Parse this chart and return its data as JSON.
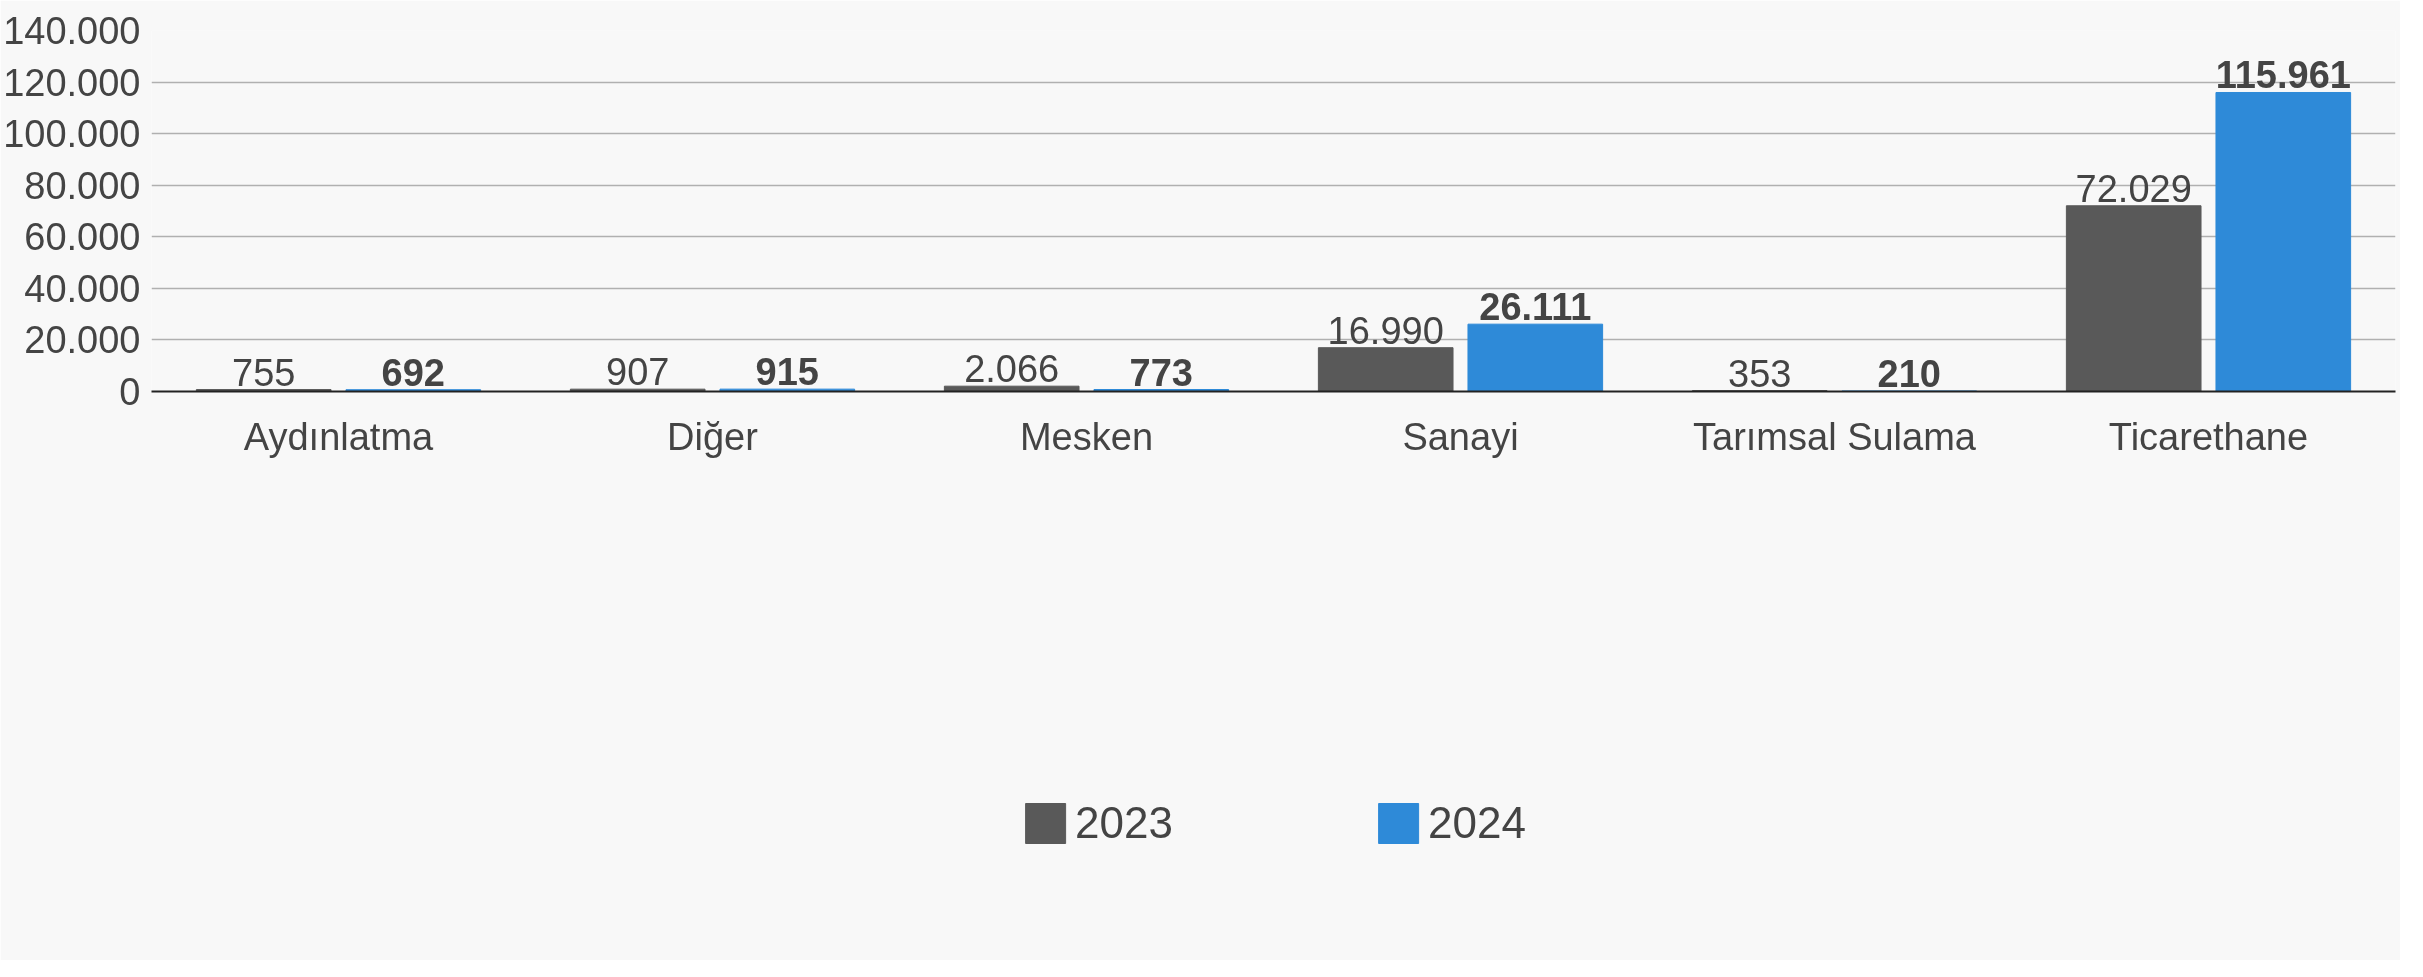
{
  "chart_data": {
    "type": "bar",
    "categories": [
      "Aydınlatma",
      "Diğer",
      "Mesken",
      "Sanayi",
      "Tarımsal Sulama",
      "Ticarethane"
    ],
    "series": [
      {
        "name": "2023",
        "color": "#595959",
        "values": [
          755,
          907,
          2066,
          16990,
          353,
          72029
        ],
        "value_labels": [
          "755",
          "907",
          "2.066",
          "16.990",
          "353",
          "72.029"
        ]
      },
      {
        "name": "2024",
        "color": "#2e8ad8",
        "values": [
          692,
          915,
          773,
          26111,
          210,
          115961
        ],
        "value_labels": [
          "692",
          "915",
          "773",
          "26.111",
          "210",
          "115.961"
        ]
      }
    ],
    "ylim": [
      0,
      140000
    ],
    "yticks": [
      {
        "value": 0,
        "label": "0"
      },
      {
        "value": 20000,
        "label": "20.000"
      },
      {
        "value": 40000,
        "label": "40.000"
      },
      {
        "value": 60000,
        "label": "60.000"
      },
      {
        "value": 80000,
        "label": "80.000"
      },
      {
        "value": 100000,
        "label": "100.000"
      },
      {
        "value": 120000,
        "label": "120.000"
      },
      {
        "value": 140000,
        "label": "140.000"
      }
    ],
    "grid": "y",
    "legend": "bottom"
  }
}
